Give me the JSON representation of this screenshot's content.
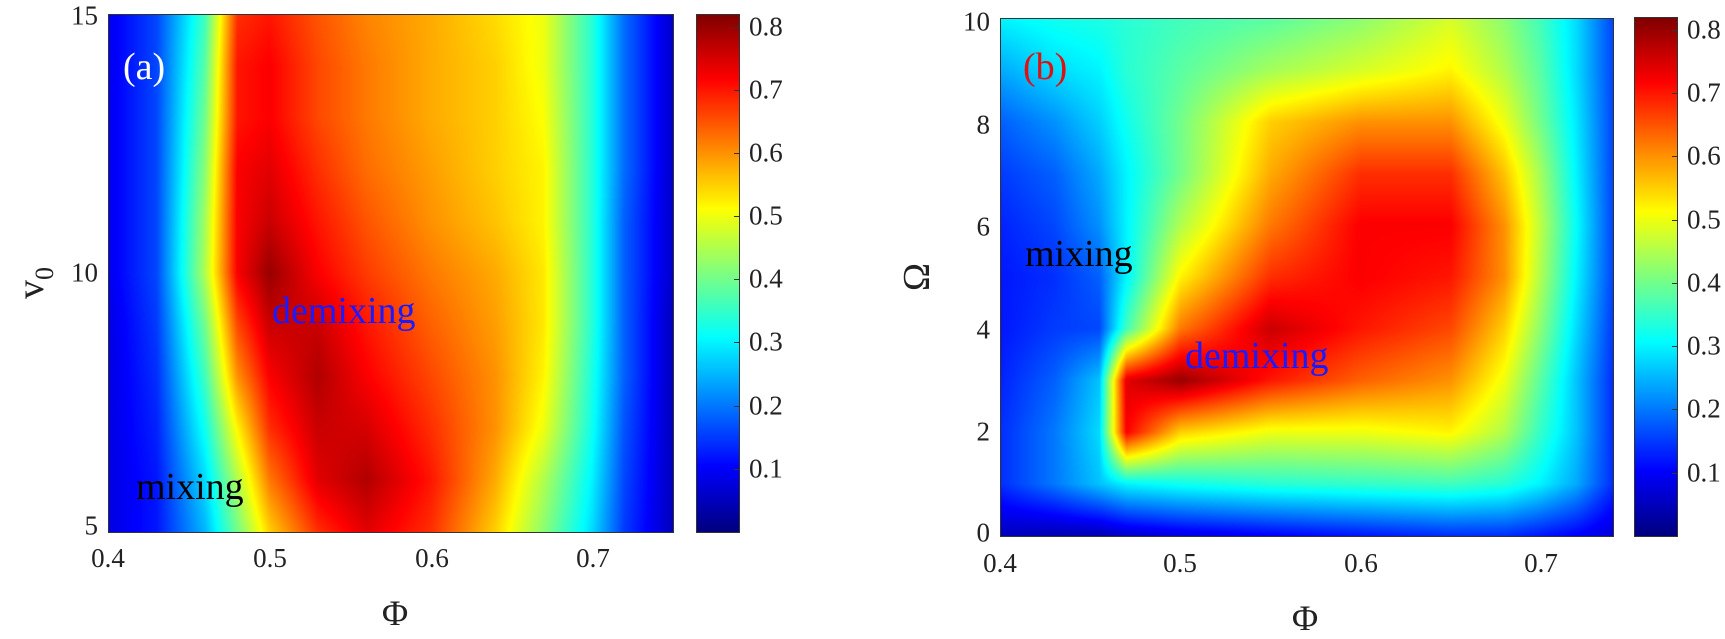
{
  "figure": {
    "panels": [
      {
        "id": "a",
        "panel_label": "(a)",
        "panel_label_color": "#ffffff",
        "xlabel": "Φ",
        "ylabel_main": "v",
        "ylabel_sub": "0",
        "xticks": [
          "0.4",
          "0.5",
          "0.6",
          "0.7"
        ],
        "yticks": [
          "5",
          "10",
          "15"
        ],
        "colorbar_ticks": [
          "0.1",
          "0.2",
          "0.3",
          "0.4",
          "0.5",
          "0.6",
          "0.7",
          "0.8"
        ],
        "annotations": [
          {
            "text": "demixing",
            "color": "#1a1aff"
          },
          {
            "text": "mixing",
            "color": "#000000"
          }
        ]
      },
      {
        "id": "b",
        "panel_label": "(b)",
        "panel_label_color": "#e01010",
        "xlabel": "Φ",
        "ylabel_main": "Ω",
        "xticks": [
          "0.4",
          "0.5",
          "0.6",
          "0.7"
        ],
        "yticks": [
          "0",
          "2",
          "4",
          "6",
          "8",
          "10"
        ],
        "colorbar_ticks": [
          "0.1",
          "0.2",
          "0.3",
          "0.4",
          "0.5",
          "0.6",
          "0.7",
          "0.8"
        ],
        "annotations": [
          {
            "text": "mixing",
            "color": "#000000"
          },
          {
            "text": "demixing",
            "color": "#1a1aff"
          }
        ]
      }
    ]
  },
  "chart_data": [
    {
      "type": "heatmap",
      "title": "(a)",
      "xlabel": "Φ",
      "ylabel": "v0",
      "xlim": [
        0.4,
        0.75
      ],
      "ylim": [
        5,
        15
      ],
      "clim": [
        0.0,
        0.82
      ],
      "colormap": "jet",
      "colorbar_ticks": [
        0.1,
        0.2,
        0.3,
        0.4,
        0.5,
        0.6,
        0.7,
        0.8
      ],
      "annotations": [
        {
          "text": "demixing",
          "x": 0.54,
          "y": 9.2,
          "color": "#1a1aff"
        },
        {
          "text": "mixing",
          "x": 0.43,
          "y": 5.8,
          "color": "#000000"
        }
      ],
      "x": [
        0.4,
        0.43,
        0.46,
        0.48,
        0.5,
        0.53,
        0.56,
        0.6,
        0.64,
        0.67,
        0.7,
        0.72,
        0.75
      ],
      "y": [
        5,
        6,
        7,
        8,
        9,
        10,
        11,
        12,
        13,
        14,
        15
      ],
      "z": [
        [
          0.08,
          0.12,
          0.25,
          0.4,
          0.55,
          0.68,
          0.74,
          0.68,
          0.55,
          0.42,
          0.28,
          0.15,
          0.05
        ],
        [
          0.08,
          0.12,
          0.28,
          0.45,
          0.62,
          0.74,
          0.78,
          0.7,
          0.58,
          0.45,
          0.3,
          0.16,
          0.05
        ],
        [
          0.08,
          0.13,
          0.32,
          0.52,
          0.68,
          0.76,
          0.75,
          0.68,
          0.6,
          0.5,
          0.32,
          0.17,
          0.05
        ],
        [
          0.08,
          0.14,
          0.36,
          0.6,
          0.72,
          0.78,
          0.72,
          0.66,
          0.6,
          0.52,
          0.33,
          0.18,
          0.05
        ],
        [
          0.08,
          0.15,
          0.4,
          0.66,
          0.76,
          0.76,
          0.7,
          0.64,
          0.59,
          0.53,
          0.34,
          0.18,
          0.05
        ],
        [
          0.09,
          0.16,
          0.45,
          0.72,
          0.8,
          0.72,
          0.67,
          0.62,
          0.58,
          0.53,
          0.34,
          0.18,
          0.06
        ],
        [
          0.09,
          0.16,
          0.44,
          0.72,
          0.76,
          0.7,
          0.65,
          0.6,
          0.56,
          0.52,
          0.34,
          0.18,
          0.06
        ],
        [
          0.09,
          0.16,
          0.42,
          0.72,
          0.74,
          0.68,
          0.63,
          0.59,
          0.55,
          0.52,
          0.34,
          0.19,
          0.06
        ],
        [
          0.09,
          0.16,
          0.4,
          0.7,
          0.72,
          0.66,
          0.62,
          0.58,
          0.55,
          0.51,
          0.34,
          0.19,
          0.06
        ],
        [
          0.09,
          0.16,
          0.38,
          0.7,
          0.72,
          0.66,
          0.62,
          0.58,
          0.55,
          0.5,
          0.34,
          0.19,
          0.06
        ],
        [
          0.09,
          0.16,
          0.36,
          0.68,
          0.7,
          0.65,
          0.61,
          0.58,
          0.54,
          0.5,
          0.34,
          0.19,
          0.06
        ]
      ]
    },
    {
      "type": "heatmap",
      "title": "(b)",
      "xlabel": "Φ",
      "ylabel": "Ω",
      "xlim": [
        0.4,
        0.74
      ],
      "ylim": [
        0,
        10
      ],
      "clim": [
        0.0,
        0.82
      ],
      "colormap": "jet",
      "colorbar_ticks": [
        0.1,
        0.2,
        0.3,
        0.4,
        0.5,
        0.6,
        0.7,
        0.8
      ],
      "annotations": [
        {
          "text": "mixing",
          "x": 0.41,
          "y": 5.5,
          "color": "#000000"
        },
        {
          "text": "demixing",
          "x": 0.5,
          "y": 3.5,
          "color": "#1a1aff"
        }
      ],
      "x": [
        0.4,
        0.43,
        0.455,
        0.47,
        0.5,
        0.55,
        0.6,
        0.65,
        0.68,
        0.7,
        0.72,
        0.74
      ],
      "y": [
        0,
        1,
        2,
        3,
        4,
        5,
        6,
        7,
        8,
        9,
        10
      ],
      "z": [
        [
          0.05,
          0.04,
          0.04,
          0.06,
          0.08,
          0.1,
          0.12,
          0.14,
          0.14,
          0.12,
          0.1,
          0.07
        ],
        [
          0.14,
          0.2,
          0.26,
          0.3,
          0.32,
          0.34,
          0.35,
          0.36,
          0.34,
          0.3,
          0.24,
          0.14
        ],
        [
          0.14,
          0.2,
          0.28,
          0.72,
          0.55,
          0.5,
          0.5,
          0.52,
          0.45,
          0.35,
          0.26,
          0.14
        ],
        [
          0.13,
          0.18,
          0.26,
          0.74,
          0.8,
          0.7,
          0.64,
          0.6,
          0.5,
          0.38,
          0.26,
          0.14
        ],
        [
          0.12,
          0.15,
          0.16,
          0.36,
          0.62,
          0.76,
          0.7,
          0.66,
          0.55,
          0.42,
          0.28,
          0.15
        ],
        [
          0.12,
          0.14,
          0.18,
          0.3,
          0.52,
          0.68,
          0.72,
          0.7,
          0.6,
          0.45,
          0.3,
          0.16
        ],
        [
          0.13,
          0.16,
          0.22,
          0.3,
          0.45,
          0.62,
          0.72,
          0.72,
          0.6,
          0.46,
          0.31,
          0.16
        ],
        [
          0.15,
          0.18,
          0.24,
          0.3,
          0.4,
          0.58,
          0.68,
          0.68,
          0.56,
          0.44,
          0.3,
          0.16
        ],
        [
          0.18,
          0.22,
          0.27,
          0.32,
          0.4,
          0.55,
          0.6,
          0.6,
          0.5,
          0.4,
          0.29,
          0.16
        ],
        [
          0.24,
          0.28,
          0.3,
          0.34,
          0.38,
          0.44,
          0.48,
          0.52,
          0.45,
          0.38,
          0.28,
          0.16
        ],
        [
          0.3,
          0.32,
          0.33,
          0.34,
          0.36,
          0.38,
          0.42,
          0.48,
          0.42,
          0.36,
          0.28,
          0.16
        ]
      ]
    }
  ]
}
